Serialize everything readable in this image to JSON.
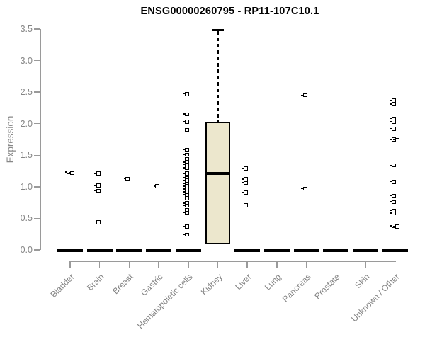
{
  "chart_data": {
    "type": "boxplot",
    "title": "ENSG00000260795 - RP11-107C10.1",
    "ylabel": "Expression",
    "xlabel": "",
    "ylim": [
      0.0,
      3.5
    ],
    "ytick_labels": [
      "0.0",
      "0.5",
      "1.0",
      "1.5",
      "2.0",
      "2.5",
      "3.0",
      "3.5"
    ],
    "ytick_values": [
      0.0,
      0.5,
      1.0,
      1.5,
      2.0,
      2.5,
      3.0,
      3.5
    ],
    "grid": false,
    "legend": null,
    "colors": {
      "box_fill": "#ece7cd",
      "box_stroke": "#000000",
      "point": "#000000",
      "axis": "#9a9a9a",
      "tick_text": "#858585",
      "title_text": "#000000"
    },
    "categories": [
      {
        "label": "Bladder",
        "box": {
          "q1": 0,
          "median": 0,
          "q3": 0
        },
        "points": [
          1.23,
          1.22
        ]
      },
      {
        "label": "Brain",
        "box": {
          "q1": 0,
          "median": 0,
          "q3": 0
        },
        "points": [
          1.21,
          1.02,
          0.94,
          0.44
        ]
      },
      {
        "label": "Breast",
        "box": {
          "q1": 0,
          "median": 0,
          "q3": 0
        },
        "points": [
          1.13
        ]
      },
      {
        "label": "Gastric",
        "box": {
          "q1": 0,
          "median": 0,
          "q3": 0
        },
        "points": [
          1.01
        ]
      },
      {
        "label": "Hematopoietic cells",
        "box": {
          "q1": 0,
          "median": 0,
          "q3": 0
        },
        "points": [
          2.47,
          2.15,
          2.03,
          1.9,
          1.59,
          1.51,
          1.44,
          1.39,
          1.35,
          1.3,
          1.21,
          1.14,
          1.1,
          1.05,
          1.01,
          0.96,
          0.92,
          0.87,
          0.82,
          0.74,
          0.7,
          0.63,
          0.59,
          0.37,
          0.24
        ]
      },
      {
        "label": "Kidney",
        "box": {
          "q1": 0.09,
          "median": 1.21,
          "q3": 2.03,
          "whisker_high": 3.48
        },
        "points": []
      },
      {
        "label": "Liver",
        "box": {
          "q1": 0,
          "median": 0,
          "q3": 0
        },
        "points": [
          1.29,
          1.12,
          1.06,
          0.91,
          0.71
        ]
      },
      {
        "label": "Lung",
        "box": {
          "q1": 0,
          "median": 0,
          "q3": 0
        },
        "points": []
      },
      {
        "label": "Pancreas",
        "box": {
          "q1": 0,
          "median": 0,
          "q3": 0
        },
        "points": [
          2.45,
          0.97
        ]
      },
      {
        "label": "Prostate",
        "box": {
          "q1": 0,
          "median": 0,
          "q3": 0
        },
        "points": []
      },
      {
        "label": "Skin",
        "box": {
          "q1": 0,
          "median": 0,
          "q3": 0
        },
        "points": []
      },
      {
        "label": "Unknown / Other",
        "box": {
          "q1": 0,
          "median": 0,
          "q3": 0
        },
        "points": [
          2.37,
          2.31,
          2.08,
          2.03,
          1.92,
          1.75,
          1.74,
          1.34,
          1.08,
          0.86,
          0.76,
          0.62,
          0.58,
          0.38,
          0.37
        ]
      }
    ]
  }
}
